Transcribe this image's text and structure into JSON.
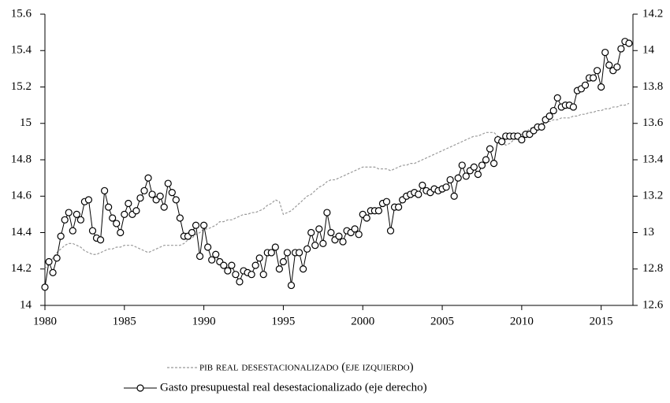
{
  "chart_data": {
    "type": "line",
    "x": [
      1980,
      1980.25,
      1980.5,
      1980.75,
      1981,
      1981.25,
      1981.5,
      1981.75,
      1982,
      1982.25,
      1982.5,
      1982.75,
      1983,
      1983.25,
      1983.5,
      1983.75,
      1984,
      1984.25,
      1984.5,
      1984.75,
      1985,
      1985.25,
      1985.5,
      1985.75,
      1986,
      1986.25,
      1986.5,
      1986.75,
      1987,
      1987.25,
      1987.5,
      1987.75,
      1988,
      1988.25,
      1988.5,
      1988.75,
      1989,
      1989.25,
      1989.5,
      1989.75,
      1990,
      1990.25,
      1990.5,
      1990.75,
      1991,
      1991.25,
      1991.5,
      1991.75,
      1992,
      1992.25,
      1992.5,
      1992.75,
      1993,
      1993.25,
      1993.5,
      1993.75,
      1994,
      1994.25,
      1994.5,
      1994.75,
      1995,
      1995.25,
      1995.5,
      1995.75,
      1996,
      1996.25,
      1996.5,
      1996.75,
      1997,
      1997.25,
      1997.5,
      1997.75,
      1998,
      1998.25,
      1998.5,
      1998.75,
      1999,
      1999.25,
      1999.5,
      1999.75,
      2000,
      2000.25,
      2000.5,
      2000.75,
      2001,
      2001.25,
      2001.5,
      2001.75,
      2002,
      2002.25,
      2002.5,
      2002.75,
      2003,
      2003.25,
      2003.5,
      2003.75,
      2004,
      2004.25,
      2004.5,
      2004.75,
      2005,
      2005.25,
      2005.5,
      2005.75,
      2006,
      2006.25,
      2006.5,
      2006.75,
      2007,
      2007.25,
      2007.5,
      2007.75,
      2008,
      2008.25,
      2008.5,
      2008.75,
      2009,
      2009.25,
      2009.5,
      2009.75,
      2010,
      2010.25,
      2010.5,
      2010.75,
      2011,
      2011.25,
      2011.5,
      2011.75,
      2012,
      2012.25,
      2012.5,
      2012.75,
      2013,
      2013.25,
      2013.5,
      2013.75,
      2014,
      2014.25,
      2014.5,
      2014.75,
      2015,
      2015.25,
      2015.5,
      2015.75,
      2016,
      2016.25,
      2016.5,
      2016.75
    ],
    "series": [
      {
        "name": "pib real desestacionalizado (eje izquierdo)",
        "color": "#999999",
        "style": "dashed",
        "values": [
          14.2,
          14.23,
          14.26,
          14.29,
          14.31,
          14.33,
          14.34,
          14.34,
          14.33,
          14.32,
          14.3,
          14.29,
          14.28,
          14.28,
          14.29,
          14.3,
          14.31,
          14.31,
          14.32,
          14.32,
          14.33,
          14.33,
          14.33,
          14.32,
          14.31,
          14.3,
          14.29,
          14.3,
          14.31,
          14.32,
          14.33,
          14.33,
          14.33,
          14.33,
          14.33,
          14.34,
          14.36,
          14.37,
          14.39,
          14.4,
          14.42,
          14.42,
          14.43,
          14.44,
          14.46,
          14.46,
          14.47,
          14.47,
          14.48,
          14.49,
          14.5,
          14.5,
          14.51,
          14.51,
          14.52,
          14.53,
          14.55,
          14.56,
          14.58,
          14.57,
          14.5,
          14.51,
          14.52,
          14.54,
          14.56,
          14.58,
          14.6,
          14.61,
          14.63,
          14.65,
          14.66,
          14.68,
          14.69,
          14.69,
          14.7,
          14.71,
          14.72,
          14.73,
          14.74,
          14.75,
          14.76,
          14.76,
          14.76,
          14.76,
          14.75,
          14.75,
          14.75,
          14.74,
          14.75,
          14.76,
          14.77,
          14.77,
          14.78,
          14.78,
          14.79,
          14.8,
          14.81,
          14.82,
          14.83,
          14.84,
          14.85,
          14.86,
          14.87,
          14.88,
          14.89,
          14.9,
          14.91,
          14.92,
          14.93,
          14.93,
          14.94,
          14.95,
          14.95,
          14.95,
          14.93,
          14.9,
          14.88,
          14.89,
          14.91,
          14.92,
          14.94,
          14.95,
          14.97,
          14.98,
          14.99,
          15.0,
          15.01,
          15.01,
          15.02,
          15.02,
          15.03,
          15.03,
          15.03,
          15.04,
          15.04,
          15.05,
          15.05,
          15.06,
          15.06,
          15.07,
          15.07,
          15.08,
          15.08,
          15.09,
          15.09,
          15.1,
          15.1,
          15.11
        ]
      },
      {
        "name": "Gasto presupuestal real desestacionalizado (eje derecho)",
        "color": "#000000",
        "style": "markers",
        "axis": "y2",
        "values": [
          12.7,
          12.84,
          12.78,
          12.86,
          12.98,
          13.07,
          13.11,
          13.01,
          13.1,
          13.07,
          13.17,
          13.18,
          13.01,
          12.97,
          12.96,
          13.23,
          13.14,
          13.08,
          13.05,
          13.0,
          13.1,
          13.16,
          13.1,
          13.12,
          13.19,
          13.23,
          13.3,
          13.21,
          13.18,
          13.2,
          13.14,
          13.27,
          13.22,
          13.18,
          13.08,
          12.98,
          12.98,
          13.0,
          13.04,
          12.87,
          13.04,
          12.92,
          12.85,
          12.88,
          12.84,
          12.82,
          12.79,
          12.82,
          12.77,
          12.73,
          12.79,
          12.78,
          12.77,
          12.82,
          12.86,
          12.77,
          12.89,
          12.89,
          12.92,
          12.8,
          12.84,
          12.89,
          12.71,
          12.89,
          12.89,
          12.8,
          12.91,
          13.0,
          12.93,
          13.02,
          12.94,
          13.11,
          13.0,
          12.96,
          12.98,
          12.95,
          13.01,
          13.0,
          13.02,
          12.99,
          13.1,
          13.08,
          13.12,
          13.12,
          13.12,
          13.16,
          13.17,
          13.01,
          13.14,
          13.14,
          13.18,
          13.2,
          13.21,
          13.22,
          13.21,
          13.26,
          13.23,
          13.22,
          13.24,
          13.23,
          13.24,
          13.25,
          13.29,
          13.2,
          13.3,
          13.37,
          13.31,
          13.34,
          13.36,
          13.32,
          13.37,
          13.4,
          13.46,
          13.38,
          13.51,
          13.5,
          13.53,
          13.53,
          13.53,
          13.53,
          13.51,
          13.54,
          13.54,
          13.56,
          13.58,
          13.58,
          13.62,
          13.64,
          13.67,
          13.74,
          13.69,
          13.7,
          13.7,
          13.69,
          13.78,
          13.79,
          13.81,
          13.85,
          13.85,
          13.89,
          13.8,
          13.99,
          13.92,
          13.89,
          13.91,
          14.01,
          14.05,
          14.04
        ]
      }
    ],
    "xlim": [
      1980,
      2017
    ],
    "xticks": [
      1980,
      1985,
      1990,
      1995,
      2000,
      2005,
      2010,
      2015
    ],
    "ylim": [
      14,
      15.6
    ],
    "yticks": [
      14,
      14.2,
      14.4,
      14.6,
      14.8,
      15,
      15.2,
      15.4,
      15.6
    ],
    "y2lim": [
      12.6,
      14.2
    ],
    "y2ticks": [
      12.6,
      12.8,
      13,
      13.2,
      13.4,
      13.6,
      13.8,
      14,
      14.2
    ],
    "legend": "bottom"
  }
}
